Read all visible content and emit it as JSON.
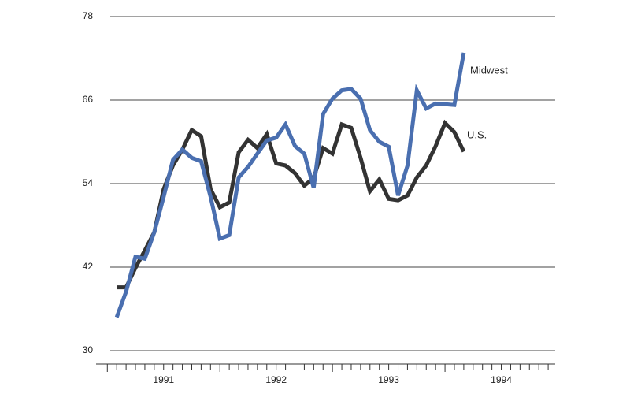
{
  "chart_data": {
    "type": "line",
    "annotations": [
      "Midwest",
      "U.S."
    ],
    "x": [
      1991.083,
      1991.167,
      1991.25,
      1991.333,
      1991.417,
      1991.5,
      1991.583,
      1991.667,
      1991.75,
      1991.833,
      1991.917,
      1992,
      1992.083,
      1992.167,
      1992.25,
      1992.333,
      1992.417,
      1992.5,
      1992.583,
      1992.667,
      1992.75,
      1992.833,
      1992.917,
      1993,
      1993.083,
      1993.167,
      1993.25,
      1993.333,
      1993.417,
      1993.5,
      1993.583,
      1993.667,
      1993.75,
      1993.833,
      1993.917,
      1994,
      1994.083,
      1994.167
    ],
    "series": [
      {
        "name": "U.S.",
        "color": "#333333",
        "values": [
          39.1,
          39.1,
          41.9,
          44.4,
          47.0,
          53.2,
          56.6,
          58.9,
          61.7,
          60.8,
          53.2,
          50.6,
          51.3,
          58.5,
          60.3,
          59.1,
          61.1,
          56.9,
          56.6,
          55.5,
          53.7,
          54.8,
          59.1,
          58.3,
          62.5,
          62.0,
          57.7,
          52.9,
          54.6,
          51.8,
          51.6,
          52.3,
          54.9,
          56.6,
          59.4,
          62.7,
          61.4,
          58.6
        ]
      },
      {
        "name": "Midwest",
        "color": "#4a6fb0",
        "values": [
          34.8,
          38.5,
          43.5,
          43.2,
          47.0,
          52.1,
          57.4,
          58.9,
          57.7,
          57.2,
          52.1,
          46.1,
          46.6,
          54.9,
          56.4,
          58.3,
          60.2,
          60.6,
          62.5,
          59.4,
          58.3,
          53.4,
          64.0,
          66.2,
          67.4,
          67.6,
          66.2,
          61.7,
          60.0,
          59.3,
          52.3,
          56.6,
          67.4,
          64.8,
          65.5,
          65.4,
          65.3,
          72.8
        ]
      }
    ],
    "xlim": [
      1990.9,
      1995
    ],
    "xticks": [
      {
        "value": 1991.5,
        "label": "1991"
      },
      {
        "value": 1992.5,
        "label": "1992"
      },
      {
        "value": 1993.5,
        "label": "1993"
      },
      {
        "value": 1994.5,
        "label": "1994"
      }
    ],
    "ylim": [
      30,
      78
    ],
    "yticks": [
      30,
      42,
      54,
      66,
      78
    ],
    "grid": true
  }
}
